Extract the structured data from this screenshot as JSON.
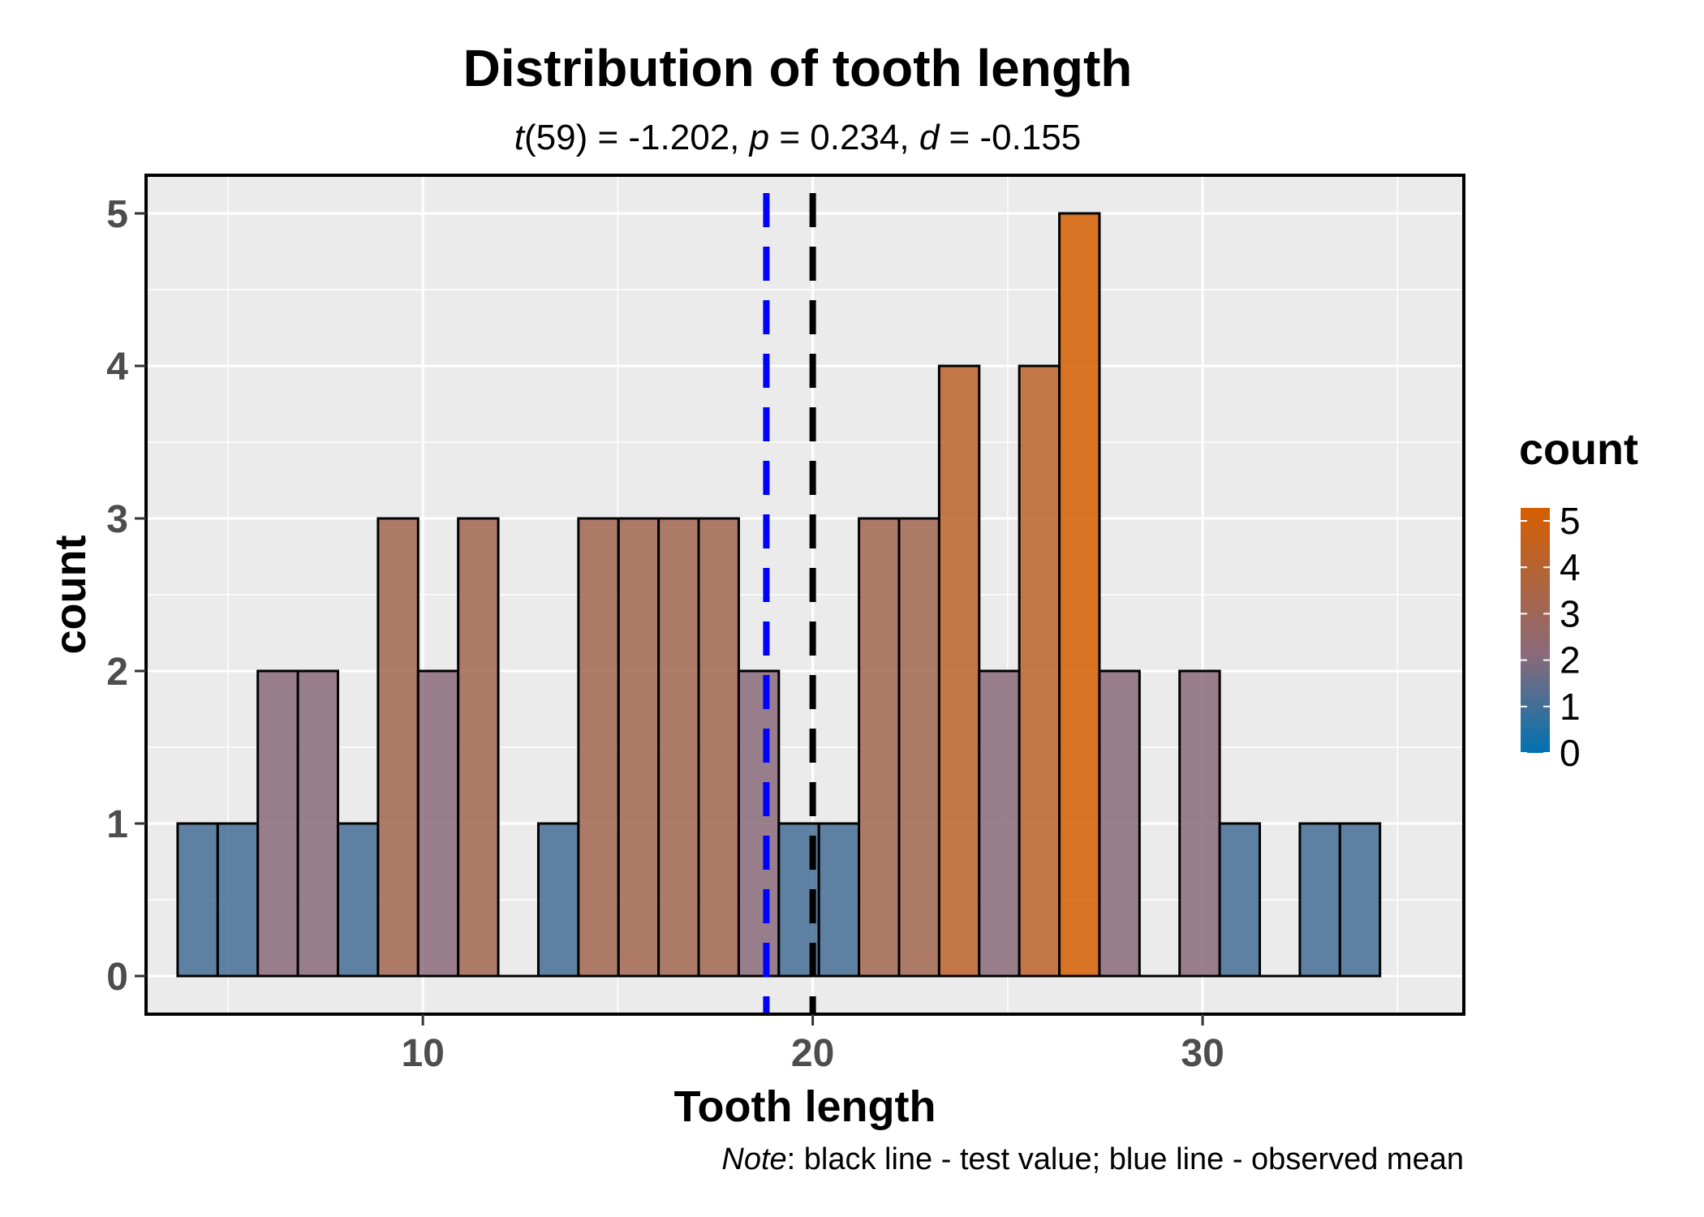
{
  "chart_data": {
    "type": "bar",
    "title": "Distribution of tooth length",
    "subtitle": {
      "t_symbol": "t",
      "t_rest": "(59) = -1.202, ",
      "p_symbol": "p",
      "p_rest": " = 0.234, ",
      "d_symbol": "d",
      "d_rest": " = -0.155"
    },
    "xlabel": "Tooth length",
    "ylabel": "count",
    "caption": {
      "note": "Note",
      "text": ": black line - test value; blue line - observed mean"
    },
    "xlim": [
      2.9,
      36.7
    ],
    "ylim": [
      -0.25,
      5.25
    ],
    "x_ticks": [
      10,
      20,
      30
    ],
    "y_ticks": [
      0,
      1,
      2,
      3,
      4,
      5
    ],
    "grid": true,
    "bin_width": 1.028,
    "bin_start": 3.71,
    "bins": [
      {
        "x": 4.22,
        "count": 1
      },
      {
        "x": 5.25,
        "count": 1
      },
      {
        "x": 6.28,
        "count": 2
      },
      {
        "x": 7.31,
        "count": 2
      },
      {
        "x": 8.34,
        "count": 1
      },
      {
        "x": 9.36,
        "count": 3
      },
      {
        "x": 10.39,
        "count": 2
      },
      {
        "x": 11.42,
        "count": 3
      },
      {
        "x": 12.45,
        "count": 0
      },
      {
        "x": 13.48,
        "count": 1
      },
      {
        "x": 14.5,
        "count": 3
      },
      {
        "x": 15.53,
        "count": 3
      },
      {
        "x": 16.56,
        "count": 3
      },
      {
        "x": 17.59,
        "count": 3
      },
      {
        "x": 18.62,
        "count": 2
      },
      {
        "x": 19.64,
        "count": 1
      },
      {
        "x": 20.67,
        "count": 1
      },
      {
        "x": 21.7,
        "count": 3
      },
      {
        "x": 22.73,
        "count": 3
      },
      {
        "x": 23.76,
        "count": 4
      },
      {
        "x": 24.78,
        "count": 2
      },
      {
        "x": 25.81,
        "count": 4
      },
      {
        "x": 26.84,
        "count": 5
      },
      {
        "x": 27.87,
        "count": 2
      },
      {
        "x": 28.9,
        "count": 0
      },
      {
        "x": 29.92,
        "count": 2
      },
      {
        "x": 30.95,
        "count": 1
      },
      {
        "x": 31.98,
        "count": 0
      },
      {
        "x": 33.01,
        "count": 1
      },
      {
        "x": 34.04,
        "count": 1
      }
    ],
    "reference_lines": [
      {
        "name": "observed mean",
        "x": 18.81,
        "color": "#0000ff"
      },
      {
        "name": "test value",
        "x": 20,
        "color": "#000000"
      }
    ],
    "legend": {
      "title": "count",
      "position": "right",
      "breaks": [
        0,
        1,
        2,
        3,
        4,
        5
      ],
      "low_color": "#0072B2",
      "high_color": "#D55E00"
    }
  }
}
